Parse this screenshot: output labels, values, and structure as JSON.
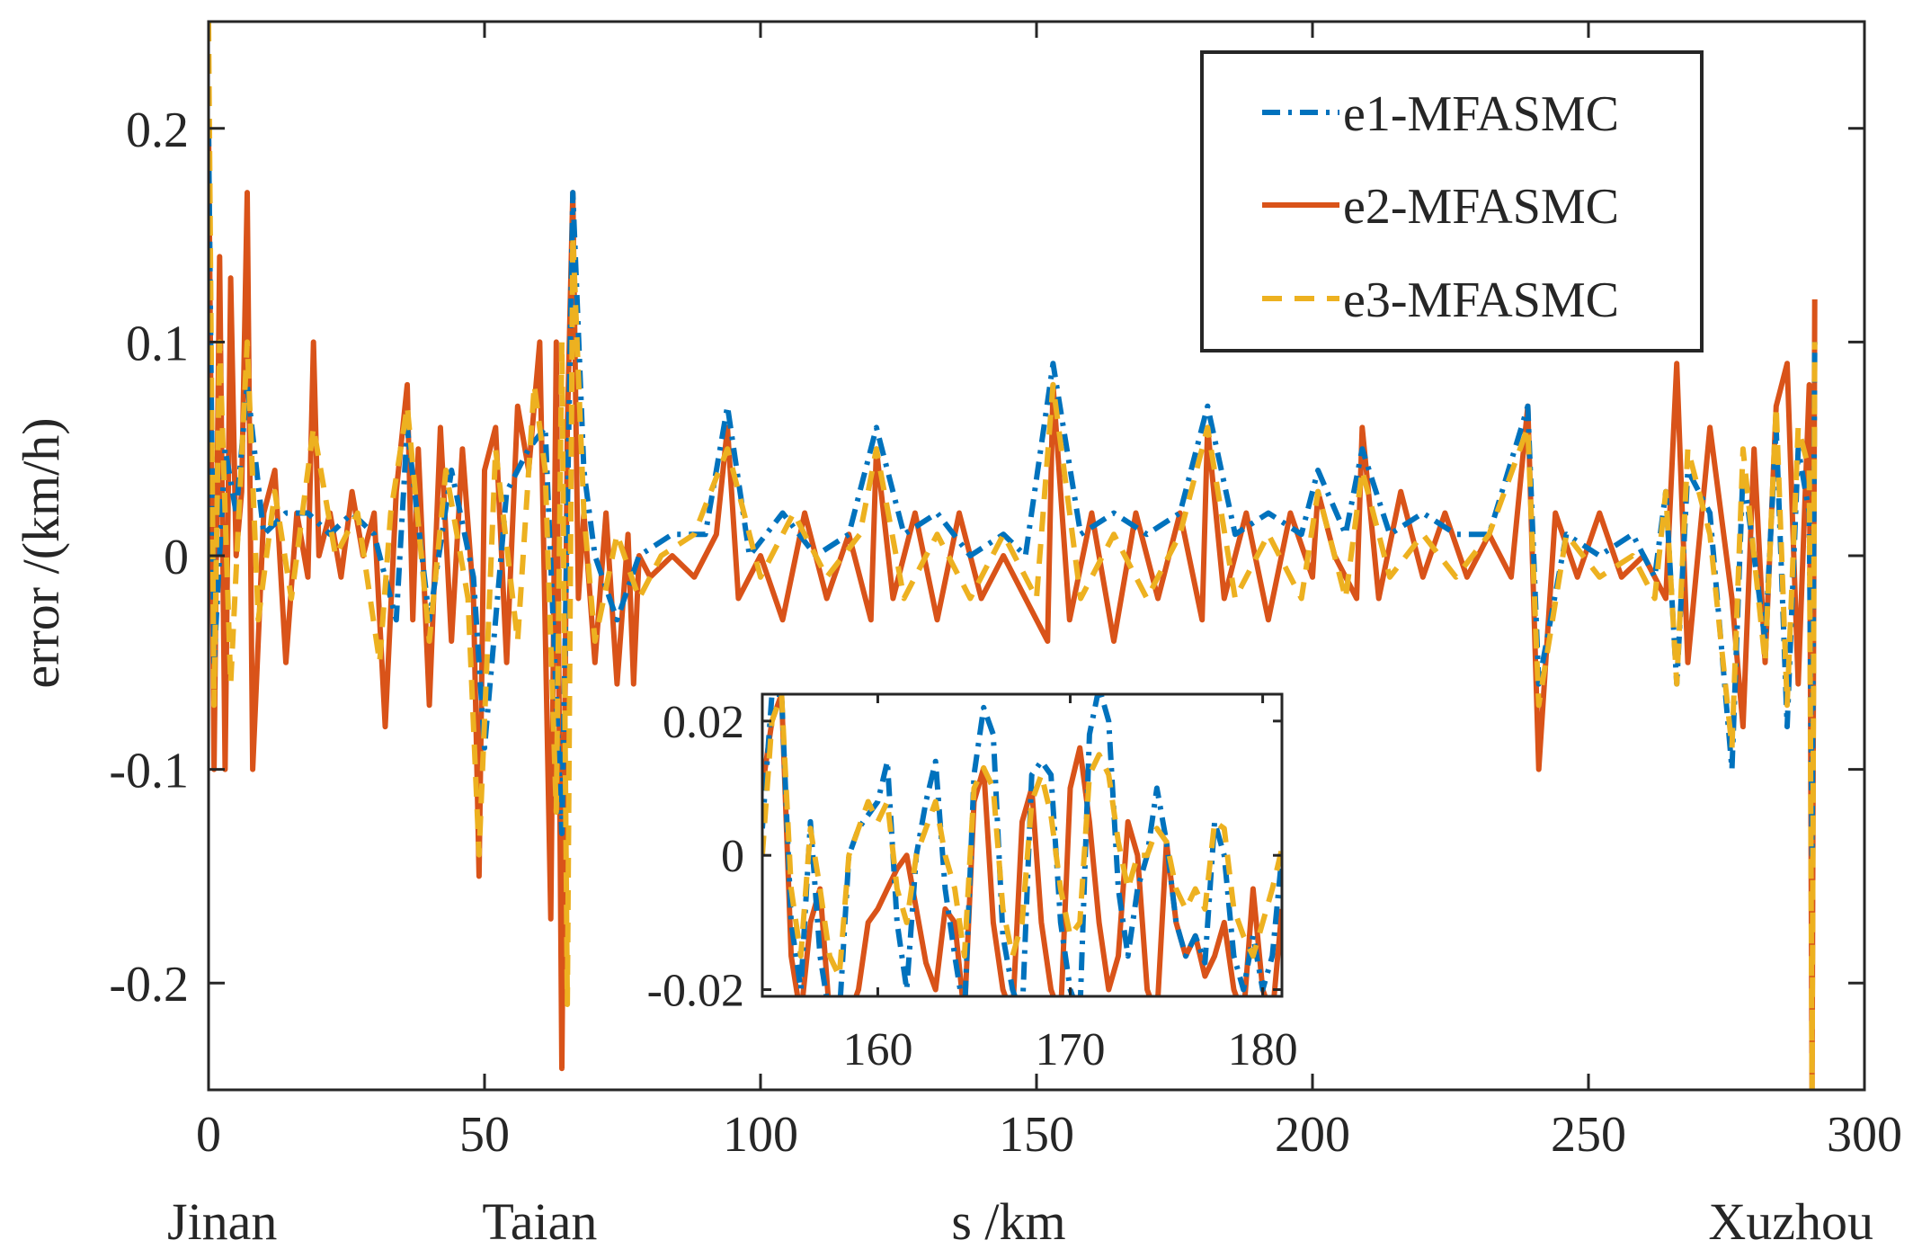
{
  "chart_data": {
    "type": "line",
    "ylabel": "error /(km/h)",
    "xlabel": "s /km",
    "xlim": [
      0,
      300
    ],
    "ylim": [
      -0.25,
      0.25
    ],
    "xticks": [
      0,
      50,
      100,
      150,
      200,
      250,
      300
    ],
    "xtick_labels": [
      "0",
      "50",
      "100",
      "150",
      "200",
      "250",
      "300"
    ],
    "yticks": [
      -0.2,
      -0.1,
      0,
      0.1,
      0.2
    ],
    "ytick_labels": [
      "-0.2",
      "-0.1",
      "0",
      "0.1",
      "0.2"
    ],
    "stations": [
      {
        "name": "Jinan",
        "x": 0
      },
      {
        "name": "Taian",
        "x": 60
      },
      {
        "name": "Xuzhou",
        "x": 300
      }
    ],
    "legend": {
      "position": "top-right",
      "entries": [
        "e1-MFASMC",
        "e2-MFASMC",
        "e3-MFASMC"
      ]
    },
    "colors": {
      "e1": "#0072BD",
      "e2": "#D95319",
      "e3": "#EDB120"
    },
    "series": [
      {
        "name": "e2-MFASMC",
        "key": "e2",
        "style": "solid",
        "x": [
          0,
          1,
          2,
          3,
          4,
          5,
          6,
          7,
          8,
          10,
          12,
          14,
          16,
          18,
          19,
          20,
          22,
          24,
          26,
          28,
          30,
          32,
          34,
          36,
          37,
          38,
          40,
          42,
          44,
          46,
          48,
          49,
          50,
          52,
          54,
          56,
          58,
          60,
          62,
          63,
          64,
          65,
          66,
          67,
          68,
          70,
          72,
          74,
          76,
          77,
          78,
          80,
          84,
          88,
          92,
          94,
          96,
          100,
          104,
          108,
          112,
          116,
          120,
          121,
          124,
          128,
          132,
          136,
          140,
          144,
          148,
          152,
          153,
          156,
          160,
          164,
          168,
          172,
          176,
          180,
          181,
          184,
          188,
          192,
          196,
          200,
          201,
          204,
          208,
          209,
          212,
          216,
          220,
          224,
          228,
          232,
          236,
          239,
          241,
          244,
          248,
          252,
          256,
          260,
          264,
          266,
          268,
          272,
          276,
          278,
          280,
          282,
          284,
          286,
          288,
          290,
          290.5,
          291
        ],
        "y": [
          0.2,
          -0.1,
          0.14,
          -0.1,
          0.13,
          0.0,
          0.03,
          0.17,
          -0.1,
          0.02,
          0.04,
          -0.05,
          0.02,
          -0.01,
          0.1,
          0.0,
          0.02,
          -0.01,
          0.03,
          0.0,
          0.02,
          -0.08,
          0.03,
          0.08,
          -0.03,
          0.05,
          -0.07,
          0.06,
          -0.04,
          0.05,
          -0.02,
          -0.15,
          0.04,
          0.06,
          -0.05,
          0.07,
          0.04,
          0.1,
          -0.17,
          0.1,
          -0.24,
          0.06,
          0.17,
          -0.02,
          0.02,
          -0.05,
          0.02,
          -0.06,
          0.01,
          -0.06,
          0.0,
          -0.01,
          0.0,
          -0.01,
          0.01,
          0.06,
          -0.02,
          0.0,
          -0.03,
          0.02,
          -0.02,
          0.01,
          -0.03,
          0.05,
          -0.02,
          0.02,
          -0.03,
          0.02,
          -0.02,
          0.0,
          -0.02,
          -0.04,
          0.08,
          -0.03,
          0.02,
          -0.04,
          0.02,
          -0.02,
          0.02,
          -0.03,
          0.06,
          -0.02,
          0.02,
          -0.03,
          0.02,
          -0.01,
          0.03,
          0.0,
          -0.02,
          0.06,
          -0.02,
          0.03,
          -0.01,
          0.02,
          -0.01,
          0.01,
          -0.01,
          0.07,
          -0.1,
          0.02,
          -0.01,
          0.02,
          -0.01,
          0.0,
          -0.02,
          0.09,
          -0.05,
          0.06,
          -0.02,
          -0.08,
          0.05,
          -0.05,
          0.07,
          0.09,
          -0.06,
          0.08,
          -0.25,
          0.12
        ]
      },
      {
        "name": "e1-MFASMC",
        "key": "e1",
        "style": "dashdot",
        "x": [
          0,
          1,
          3,
          5,
          7,
          10,
          14,
          18,
          22,
          26,
          30,
          34,
          36,
          40,
          44,
          48,
          50,
          54,
          58,
          61,
          64,
          66,
          68,
          70,
          74,
          78,
          84,
          90,
          94,
          98,
          104,
          110,
          116,
          121,
          126,
          132,
          138,
          144,
          148,
          153,
          158,
          164,
          170,
          176,
          181,
          186,
          192,
          198,
          201,
          206,
          209,
          214,
          220,
          226,
          232,
          239,
          241,
          246,
          252,
          258,
          262,
          264,
          266,
          268,
          272,
          276,
          278,
          282,
          284,
          286,
          288,
          290,
          290.5,
          291
        ],
        "y": [
          0.2,
          -0.05,
          0.05,
          0.02,
          0.08,
          0.01,
          0.02,
          0.02,
          0.01,
          0.02,
          0.01,
          -0.03,
          0.06,
          -0.03,
          0.04,
          -0.01,
          -0.09,
          0.03,
          0.05,
          0.06,
          -0.13,
          0.17,
          0.04,
          0.0,
          -0.03,
          0.0,
          0.01,
          0.01,
          0.07,
          0.0,
          0.02,
          0.0,
          0.01,
          0.06,
          0.01,
          0.02,
          0.0,
          0.01,
          0.0,
          0.09,
          0.01,
          0.02,
          0.01,
          0.02,
          0.07,
          0.01,
          0.02,
          0.01,
          0.04,
          0.01,
          0.05,
          0.01,
          0.02,
          0.01,
          0.01,
          0.07,
          -0.06,
          0.01,
          0.0,
          0.01,
          -0.01,
          0.03,
          -0.06,
          0.04,
          0.02,
          -0.1,
          0.04,
          -0.04,
          0.06,
          -0.08,
          0.05,
          0.02,
          -0.14,
          0.1
        ]
      },
      {
        "name": "e3-MFASMC",
        "key": "e3",
        "style": "dashed",
        "x": [
          0,
          1,
          2,
          4,
          7,
          9,
          12,
          15,
          19,
          23,
          27,
          31,
          33,
          36,
          40,
          43,
          47,
          49,
          52,
          56,
          59,
          61,
          63,
          64,
          65,
          66,
          68,
          70,
          74,
          78,
          82,
          88,
          94,
          100,
          106,
          112,
          118,
          121,
          126,
          132,
          138,
          144,
          150,
          153,
          158,
          164,
          170,
          176,
          181,
          186,
          192,
          198,
          201,
          206,
          209,
          214,
          220,
          226,
          232,
          239,
          241,
          246,
          252,
          258,
          262,
          264,
          266,
          268,
          272,
          276,
          278,
          282,
          284,
          286,
          288,
          290,
          290.5,
          291
        ],
        "y": [
          0.25,
          -0.07,
          0.1,
          -0.06,
          0.1,
          -0.03,
          0.03,
          -0.02,
          0.06,
          0.0,
          0.02,
          -0.05,
          0.02,
          0.07,
          -0.04,
          0.04,
          -0.02,
          -0.14,
          0.05,
          -0.04,
          0.08,
          0.04,
          -0.12,
          0.1,
          -0.21,
          0.15,
          0.02,
          -0.04,
          0.01,
          -0.02,
          0.0,
          0.01,
          0.05,
          -0.01,
          0.02,
          -0.01,
          0.01,
          0.05,
          -0.02,
          0.01,
          -0.02,
          0.01,
          -0.02,
          0.08,
          -0.02,
          0.01,
          -0.02,
          0.01,
          0.06,
          -0.02,
          0.01,
          -0.02,
          0.03,
          -0.02,
          0.04,
          -0.01,
          0.01,
          -0.01,
          0.01,
          0.06,
          -0.07,
          0.01,
          -0.01,
          0.0,
          -0.02,
          0.03,
          -0.06,
          0.05,
          0.01,
          -0.09,
          0.05,
          -0.05,
          0.07,
          -0.07,
          0.06,
          0.04,
          -0.25,
          0.1
        ]
      }
    ],
    "inset": {
      "xlim": [
        154,
        181
      ],
      "ylim": [
        -0.021,
        0.024
      ],
      "xticks": [
        160,
        170,
        180
      ],
      "xtick_labels": [
        "160",
        "170",
        "180"
      ],
      "yticks": [
        -0.02,
        0,
        0.02
      ],
      "ytick_labels": [
        "-0.02",
        "0",
        "0.02"
      ],
      "series": [
        {
          "key": "e1",
          "style": "dashdot",
          "x": [
            154,
            154.5,
            155,
            155.5,
            156,
            156.5,
            157,
            157.5,
            158,
            158.5,
            159,
            159.5,
            160,
            160.5,
            161,
            161.5,
            162,
            162.5,
            163,
            163.5,
            164,
            164.5,
            165,
            165.5,
            166,
            166.5,
            167,
            167.5,
            168,
            168.5,
            169,
            169.5,
            170,
            170.5,
            171,
            171.5,
            172,
            172.5,
            173,
            173.5,
            174,
            174.5,
            175,
            175.5,
            176,
            176.5,
            177,
            177.5,
            178,
            178.5,
            179,
            179.5,
            180,
            180.5,
            181
          ],
          "y": [
            0.004,
            0.024,
            0.024,
            -0.01,
            -0.02,
            0.005,
            -0.015,
            -0.024,
            -0.024,
            0.0,
            0.004,
            0.006,
            0.008,
            0.014,
            -0.01,
            -0.02,
            0.0,
            0.008,
            0.014,
            -0.005,
            -0.015,
            -0.024,
            0.012,
            0.022,
            0.018,
            -0.012,
            -0.02,
            -0.024,
            0.012,
            0.014,
            0.012,
            -0.01,
            -0.02,
            -0.024,
            0.018,
            0.025,
            0.02,
            -0.005,
            -0.015,
            -0.005,
            0.0,
            0.01,
            0.002,
            -0.01,
            -0.015,
            -0.012,
            -0.016,
            0.005,
            0.0,
            -0.015,
            -0.02,
            -0.012,
            -0.02,
            -0.015,
            0.0
          ]
        },
        {
          "key": "e2",
          "style": "solid",
          "x": [
            154,
            154.5,
            155,
            155.5,
            156,
            156.5,
            157,
            157.5,
            158,
            158.5,
            159,
            159.5,
            160,
            160.5,
            161,
            161.5,
            162,
            162.5,
            163,
            163.5,
            164,
            164.5,
            165,
            165.5,
            166,
            166.5,
            167,
            167.5,
            168,
            168.5,
            169,
            169.5,
            170,
            170.5,
            171,
            171.5,
            172,
            172.5,
            173,
            173.5,
            174,
            174.5,
            175,
            175.5,
            176,
            176.5,
            177,
            177.5,
            178,
            178.5,
            179,
            179.5,
            180,
            180.5,
            181
          ],
          "y": [
            0.01,
            0.02,
            0.024,
            -0.015,
            -0.024,
            -0.01,
            -0.005,
            -0.024,
            -0.024,
            -0.024,
            -0.02,
            -0.01,
            -0.008,
            -0.005,
            -0.002,
            0.0,
            -0.008,
            -0.016,
            -0.02,
            -0.008,
            -0.01,
            -0.024,
            0.008,
            0.013,
            -0.01,
            -0.02,
            -0.024,
            0.005,
            0.01,
            -0.01,
            -0.02,
            -0.024,
            0.01,
            0.016,
            0.005,
            -0.01,
            -0.02,
            -0.015,
            0.005,
            0.0,
            -0.02,
            -0.024,
            0.002,
            -0.01,
            -0.015,
            -0.012,
            -0.018,
            -0.015,
            -0.01,
            -0.02,
            -0.024,
            -0.005,
            -0.02,
            -0.024,
            -0.008
          ]
        },
        {
          "key": "e3",
          "style": "dashed",
          "x": [
            154,
            154.5,
            155,
            155.5,
            156,
            156.5,
            157,
            157.5,
            158,
            158.5,
            159,
            159.5,
            160,
            160.5,
            161,
            161.5,
            162,
            162.5,
            163,
            163.5,
            164,
            164.5,
            165,
            165.5,
            166,
            166.5,
            167,
            167.5,
            168,
            168.5,
            169,
            169.5,
            170,
            170.5,
            171,
            171.5,
            172,
            172.5,
            173,
            173.5,
            174,
            174.5,
            175,
            175.5,
            176,
            176.5,
            177,
            177.5,
            178,
            178.5,
            179,
            179.5,
            180,
            180.5,
            181
          ],
          "y": [
            0.0,
            0.02,
            0.024,
            -0.005,
            -0.015,
            0.004,
            -0.005,
            -0.015,
            -0.018,
            0.0,
            0.004,
            0.008,
            0.005,
            0.008,
            -0.005,
            -0.01,
            0.0,
            0.004,
            0.008,
            0.0,
            -0.005,
            -0.015,
            0.01,
            0.013,
            0.01,
            -0.008,
            -0.015,
            -0.01,
            0.008,
            0.012,
            0.006,
            -0.005,
            -0.012,
            -0.01,
            0.012,
            0.015,
            0.012,
            0.002,
            -0.005,
            0.0,
            0.0,
            0.004,
            0.002,
            -0.005,
            -0.008,
            -0.005,
            -0.008,
            0.005,
            0.004,
            -0.008,
            -0.012,
            -0.015,
            -0.01,
            -0.005,
            0.001
          ]
        }
      ]
    }
  }
}
